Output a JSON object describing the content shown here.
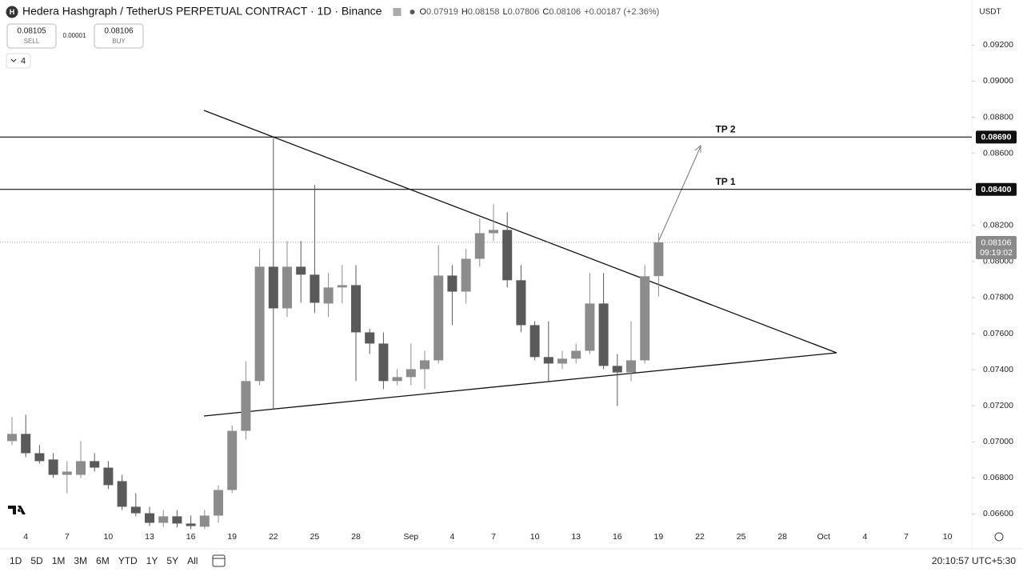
{
  "header": {
    "symbol": "Hedera Hashgraph / TetherUS PERPETUAL CONTRACT · 1D · Binance",
    "ohlc": [
      {
        "key": "O",
        "value": "0.07919"
      },
      {
        "key": "H",
        "value": "0.08158"
      },
      {
        "key": "L",
        "value": "0.07806"
      },
      {
        "key": "C",
        "value": "0.08106"
      }
    ],
    "change": "+0.00187 (+2.36%)",
    "sell": {
      "price": "0.08105",
      "label": "SELL"
    },
    "spread": "0.00001",
    "buy": {
      "price": "0.08106",
      "label": "BUY"
    },
    "indicators": "4",
    "currency": "USDT"
  },
  "toolbar": {
    "ranges": [
      "1D",
      "5D",
      "1M",
      "3M",
      "6M",
      "YTD",
      "1Y",
      "5Y",
      "All"
    ],
    "clock": "20:10:57 UTC+5:30"
  },
  "chart_data": {
    "type": "candlestick",
    "categories": [
      null,
      "4",
      null,
      null,
      "7",
      null,
      null,
      "10",
      null,
      null,
      "13",
      null,
      null,
      "16",
      null,
      null,
      "19",
      null,
      null,
      "22",
      null,
      null,
      "25",
      null,
      null,
      "28",
      null,
      null,
      null,
      "Sep",
      null,
      null,
      "4",
      null,
      null,
      "7",
      null,
      null,
      "10",
      null,
      null,
      "13",
      null,
      null,
      "16",
      null,
      null,
      "19",
      null,
      null,
      "22",
      null,
      null,
      "25",
      null,
      null,
      "28",
      null,
      null,
      "Oct",
      null,
      null,
      "4",
      null,
      null,
      "7",
      null,
      null,
      "10"
    ],
    "open": [
      0.07004,
      0.07044,
      0.06937,
      0.06902,
      0.06817,
      0.06817,
      0.06893,
      0.06857,
      0.06782,
      0.0664,
      0.06604,
      0.06551,
      0.06587,
      0.06547,
      0.06529,
      0.06591,
      0.06733,
      0.07061,
      0.07337,
      0.07971,
      0.0774,
      0.07971,
      0.07927,
      0.07767,
      0.07856,
      0.07869,
      0.07607,
      0.07545,
      0.07337,
      0.07359,
      0.07403,
      0.07452,
      0.07922,
      0.07833,
      0.08015,
      0.08157,
      0.08175,
      0.07896,
      0.07647,
      0.0747,
      0.07434,
      0.07461,
      0.07505,
      0.07767,
      0.07421,
      0.07385,
      0.07452,
      0.07919,
      null,
      null,
      null,
      null,
      null,
      null,
      null,
      null,
      null,
      null,
      null,
      null,
      null,
      null,
      null,
      null,
      null,
      null,
      null,
      null,
      null
    ],
    "high": [
      0.07137,
      0.0715,
      0.06982,
      0.06937,
      0.06893,
      0.07004,
      0.06937,
      0.06893,
      0.06817,
      0.06715,
      0.0664,
      0.06622,
      0.06622,
      0.06591,
      0.06622,
      0.0676,
      0.0709,
      0.07447,
      0.08069,
      0.08685,
      0.08113,
      0.08113,
      0.08424,
      0.07936,
      0.0798,
      0.0798,
      0.07627,
      0.07607,
      0.07403,
      0.07545,
      0.07505,
      0.08091,
      0.0798,
      0.08069,
      0.08238,
      0.08317,
      0.08273,
      0.0798,
      0.07669,
      0.07669,
      0.07505,
      0.07545,
      0.07936,
      0.07936,
      0.07487,
      0.07669,
      0.0798,
      0.08158,
      null,
      null,
      null,
      null,
      null,
      null,
      null,
      null,
      null,
      null,
      null,
      null,
      null,
      null,
      null,
      null,
      null,
      null,
      null,
      null,
      null
    ],
    "low": [
      0.06982,
      0.06915,
      0.0688,
      0.068,
      0.06715,
      0.068,
      0.06835,
      0.06738,
      0.06622,
      0.06587,
      0.06533,
      0.06529,
      0.06525,
      0.06516,
      0.06516,
      0.06551,
      0.06715,
      0.07013,
      0.07314,
      0.07181,
      0.07692,
      0.07771,
      0.07714,
      0.07692,
      0.07767,
      0.07337,
      0.07487,
      0.07292,
      0.07314,
      0.07314,
      0.07292,
      0.07434,
      0.07647,
      0.07767,
      0.07971,
      0.08113,
      0.07856,
      0.07607,
      0.07452,
      0.07337,
      0.07403,
      0.07434,
      0.07487,
      0.07403,
      0.07199,
      0.07337,
      0.07434,
      0.07806,
      null,
      null,
      null,
      null,
      null,
      null,
      null,
      null,
      null,
      null,
      null,
      null,
      null,
      null,
      null,
      null,
      null,
      null,
      null,
      null,
      null
    ],
    "close": [
      0.07044,
      0.06937,
      0.06893,
      0.06817,
      0.06835,
      0.06893,
      0.06857,
      0.0676,
      0.0664,
      0.06604,
      0.06551,
      0.06587,
      0.06547,
      0.06533,
      0.06591,
      0.06733,
      0.07061,
      0.07337,
      0.07971,
      0.0774,
      0.07971,
      0.07927,
      0.07771,
      0.07856,
      0.07869,
      0.07607,
      0.07545,
      0.07337,
      0.07359,
      0.07403,
      0.07452,
      0.07922,
      0.07833,
      0.08015,
      0.08157,
      0.08175,
      0.07896,
      0.07647,
      0.0747,
      0.07434,
      0.07461,
      0.07505,
      0.07767,
      0.07421,
      0.07385,
      0.07452,
      0.07918,
      0.08106,
      null,
      null,
      null,
      null,
      null,
      null,
      null,
      null,
      null,
      null,
      null,
      null,
      null,
      null,
      null,
      null,
      null,
      null,
      null,
      null,
      null
    ],
    "up_color": "#8c8c8c",
    "down_color": "#5a5a5a",
    "ylim": [
      0.065,
      0.0945
    ],
    "yticks": [
      {
        "value": 0.066,
        "label": "0.06600"
      },
      {
        "value": 0.068,
        "label": "0.06800"
      },
      {
        "value": 0.07,
        "label": "0.07000"
      },
      {
        "value": 0.072,
        "label": "0.07200"
      },
      {
        "value": 0.074,
        "label": "0.07400"
      },
      {
        "value": 0.076,
        "label": "0.07600"
      },
      {
        "value": 0.078,
        "label": "0.07800"
      },
      {
        "value": 0.08,
        "label": "0.08000"
      },
      {
        "value": 0.082,
        "label": "0.08200"
      },
      {
        "value": 0.086,
        "label": "0.08600"
      },
      {
        "value": 0.088,
        "label": "0.08800"
      },
      {
        "value": 0.09,
        "label": "0.09000"
      },
      {
        "value": 0.092,
        "label": "0.09200"
      }
    ],
    "levels": [
      {
        "name": "TP 2",
        "value": 0.0869,
        "label": "0.08690"
      },
      {
        "name": "TP 1",
        "value": 0.084,
        "label": "0.08400"
      }
    ],
    "last_price": {
      "value": 0.08106,
      "label": "0.08106",
      "countdown": "09:19:02"
    },
    "grid": false
  }
}
